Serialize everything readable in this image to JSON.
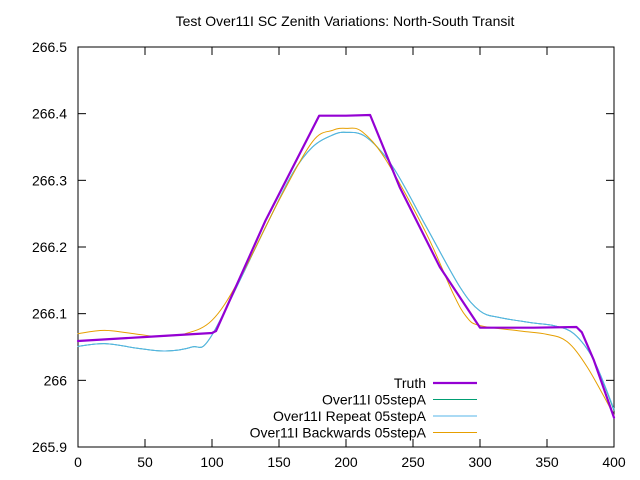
{
  "chart_data": {
    "type": "line",
    "title": "Test Over11I SC Zenith Variations: North-South Transit",
    "xlabel": "",
    "ylabel": "",
    "xlim": [
      0,
      400
    ],
    "ylim": [
      265.9,
      266.5
    ],
    "x_ticks": [
      0,
      50,
      100,
      150,
      200,
      250,
      300,
      350,
      400
    ],
    "y_ticks": [
      265.9,
      266.0,
      266.1,
      266.2,
      266.3,
      266.4,
      266.5
    ],
    "x_tick_labels": [
      "0",
      "50",
      "100",
      "150",
      "200",
      "250",
      "300",
      "350",
      "400"
    ],
    "y_tick_labels": [
      "265.9",
      "266",
      "266.1",
      "266.2",
      "266.3",
      "266.4",
      "266.5"
    ],
    "grid": false,
    "legend_position": "bottom-right",
    "series": [
      {
        "name": "Truth",
        "color": "#9400d3",
        "width": 2.2,
        "points": [
          [
            0,
            266.059
          ],
          [
            50,
            266.065
          ],
          [
            100,
            266.071
          ],
          [
            103,
            266.074
          ],
          [
            140,
            266.24
          ],
          [
            180,
            266.397
          ],
          [
            200,
            266.397
          ],
          [
            218,
            266.398
          ],
          [
            240,
            266.29
          ],
          [
            270,
            266.17
          ],
          [
            300,
            266.079
          ],
          [
            305,
            266.079
          ],
          [
            340,
            266.079
          ],
          [
            372,
            266.08
          ],
          [
            376,
            266.072
          ],
          [
            385,
            266.03
          ],
          [
            400,
            265.944
          ]
        ]
      },
      {
        "name": "Over11I 05stepA",
        "color": "#009e73",
        "width": 1.0,
        "points": [
          [
            0,
            266.051
          ],
          [
            20,
            266.055
          ],
          [
            45,
            266.048
          ],
          [
            65,
            266.044
          ],
          [
            85,
            266.05
          ],
          [
            100,
            266.068
          ],
          [
            140,
            266.23
          ],
          [
            160,
            266.31
          ],
          [
            175,
            266.35
          ],
          [
            190,
            266.368
          ],
          [
            200,
            266.372
          ],
          [
            215,
            266.365
          ],
          [
            235,
            266.32
          ],
          [
            260,
            266.23
          ],
          [
            285,
            266.14
          ],
          [
            300,
            266.104
          ],
          [
            315,
            266.094
          ],
          [
            340,
            266.086
          ],
          [
            355,
            266.082
          ],
          [
            370,
            266.07
          ],
          [
            385,
            266.03
          ],
          [
            400,
            265.955
          ]
        ]
      },
      {
        "name": "Over11I Repeat 05stepA",
        "color": "#56b4e9",
        "width": 1.0,
        "points": [
          [
            0,
            266.051
          ],
          [
            20,
            266.055
          ],
          [
            45,
            266.048
          ],
          [
            65,
            266.044
          ],
          [
            85,
            266.05
          ],
          [
            100,
            266.068
          ],
          [
            140,
            266.23
          ],
          [
            160,
            266.31
          ],
          [
            175,
            266.35
          ],
          [
            190,
            266.368
          ],
          [
            200,
            266.372
          ],
          [
            215,
            266.365
          ],
          [
            235,
            266.32
          ],
          [
            260,
            266.23
          ],
          [
            285,
            266.14
          ],
          [
            300,
            266.104
          ],
          [
            315,
            266.094
          ],
          [
            340,
            266.086
          ],
          [
            355,
            266.082
          ],
          [
            370,
            266.07
          ],
          [
            385,
            266.03
          ],
          [
            400,
            265.957
          ]
        ]
      },
      {
        "name": "Over11I Backwards 05stepA",
        "color": "#e69f00",
        "width": 1.0,
        "points": [
          [
            0,
            266.07
          ],
          [
            20,
            266.075
          ],
          [
            45,
            266.069
          ],
          [
            60,
            266.066
          ],
          [
            80,
            266.07
          ],
          [
            100,
            266.09
          ],
          [
            120,
            266.15
          ],
          [
            150,
            266.27
          ],
          [
            175,
            266.358
          ],
          [
            190,
            266.375
          ],
          [
            200,
            266.378
          ],
          [
            212,
            266.373
          ],
          [
            230,
            266.33
          ],
          [
            260,
            266.22
          ],
          [
            280,
            266.13
          ],
          [
            290,
            266.095
          ],
          [
            300,
            266.082
          ],
          [
            330,
            266.074
          ],
          [
            350,
            266.069
          ],
          [
            365,
            266.058
          ],
          [
            380,
            266.02
          ],
          [
            400,
            265.948
          ]
        ]
      }
    ]
  }
}
